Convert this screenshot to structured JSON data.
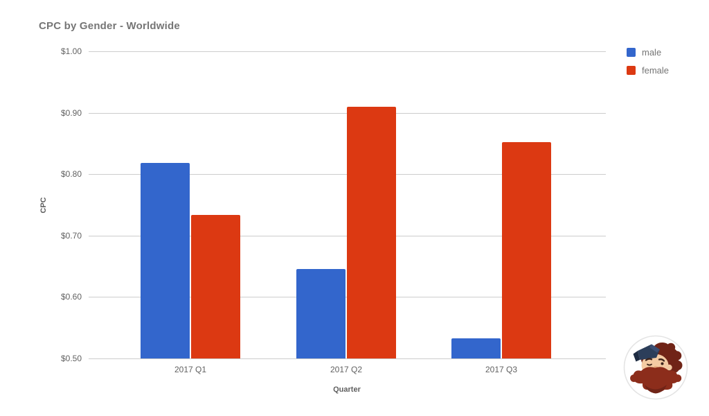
{
  "header": {
    "title": "CPC by Gender - Worldwide"
  },
  "chart_data": {
    "type": "bar",
    "title": "CPC by Gender - Worldwide",
    "categories": [
      "2017 Q1",
      "2017 Q2",
      "2017 Q3"
    ],
    "series": [
      {
        "name": "male",
        "color": "#3366cc",
        "values": [
          0.818,
          0.646,
          0.533
        ]
      },
      {
        "name": "female",
        "color": "#dc3912",
        "values": [
          0.734,
          0.91,
          0.852
        ]
      }
    ],
    "xlabel": "Quarter",
    "ylabel": "CPC",
    "ylim": [
      0.5,
      1.0
    ],
    "ytick_step": 0.1,
    "ytick_labels": [
      "$0.50",
      "$0.60",
      "$0.70",
      "$0.80",
      "$0.90",
      "$1.00"
    ],
    "currency_prefix": "$",
    "grid": true,
    "legend_position": "top-right",
    "gridline_color": "#cccccc",
    "text_color": "#616161"
  },
  "branding": {
    "logo_description": "bearded man with cap mascot in white circle"
  }
}
